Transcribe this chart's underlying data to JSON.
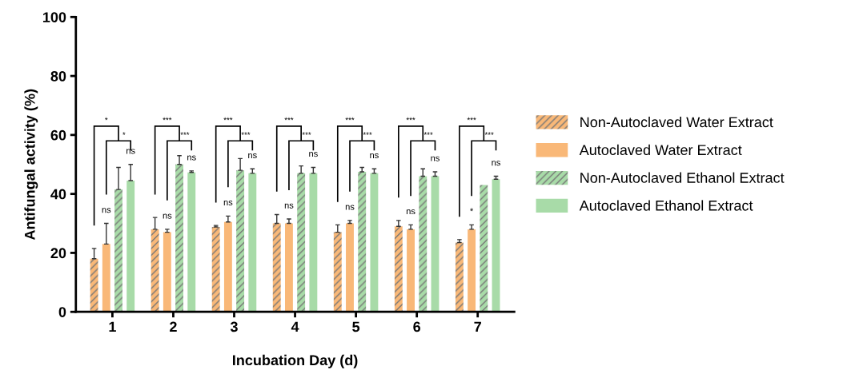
{
  "chart_data": {
    "type": "bar",
    "xlabel": "Incubation Day (d)",
    "ylabel": "Antifungal activity (%)",
    "categories": [
      "1",
      "2",
      "3",
      "4",
      "5",
      "6",
      "7"
    ],
    "series": [
      {
        "name": "Non-Autoclaved Water Extract",
        "color": "#f9b878",
        "values": [
          18,
          28,
          28.8,
          30,
          27,
          29,
          23.5
        ],
        "errors": [
          [
            18,
            21.5
          ],
          [
            28,
            32
          ],
          [
            28.8,
            29.3
          ],
          [
            30,
            33
          ],
          [
            27,
            29.5
          ],
          [
            29,
            31
          ],
          [
            23.5,
            24.5
          ]
        ]
      },
      {
        "name": "Autoclaved Water Extract",
        "color": "#f9b878",
        "values": [
          23,
          27,
          30.5,
          30,
          30,
          28,
          28
        ],
        "errors": [
          [
            23,
            30
          ],
          [
            27,
            28
          ],
          [
            30.5,
            32.5
          ],
          [
            30,
            31.5
          ],
          [
            30,
            31
          ],
          [
            28,
            29.5
          ],
          [
            28,
            29.5
          ]
        ]
      },
      {
        "name": "Non-Autoclaved Ethanol Extract",
        "color": "#a8dba8",
        "values": [
          41.5,
          50,
          48,
          47,
          47.5,
          46,
          43
        ],
        "errors": [
          [
            41.5,
            49
          ],
          [
            50,
            53
          ],
          [
            48,
            52
          ],
          [
            47,
            49.5
          ],
          [
            47.5,
            49
          ],
          [
            46,
            48.5
          ],
          null
        ]
      },
      {
        "name": "Autoclaved Ethanol Extract",
        "color": "#a8dba8",
        "values": [
          44.5,
          47.3,
          47,
          47,
          47,
          46,
          45
        ],
        "errors": [
          [
            44.5,
            50
          ],
          [
            47.3,
            47.8
          ],
          [
            47,
            48.5
          ],
          [
            47,
            49
          ],
          [
            47,
            48.5
          ],
          [
            46,
            47.5
          ],
          [
            45,
            46
          ]
        ]
      }
    ],
    "ylim": [
      0,
      100
    ],
    "yticks": [
      0,
      20,
      40,
      60,
      80,
      100
    ],
    "grid": false,
    "legend": "right",
    "annotations": [
      "*",
      "*",
      "ns",
      "ns",
      "***",
      "***",
      "ns",
      "ns",
      "***",
      "***",
      "ns",
      "ns",
      "***",
      "***",
      "ns",
      "ns",
      "***",
      "***",
      "ns",
      "ns",
      "***",
      "***",
      "ns",
      "ns",
      "***",
      "***",
      "*",
      "ns"
    ]
  }
}
